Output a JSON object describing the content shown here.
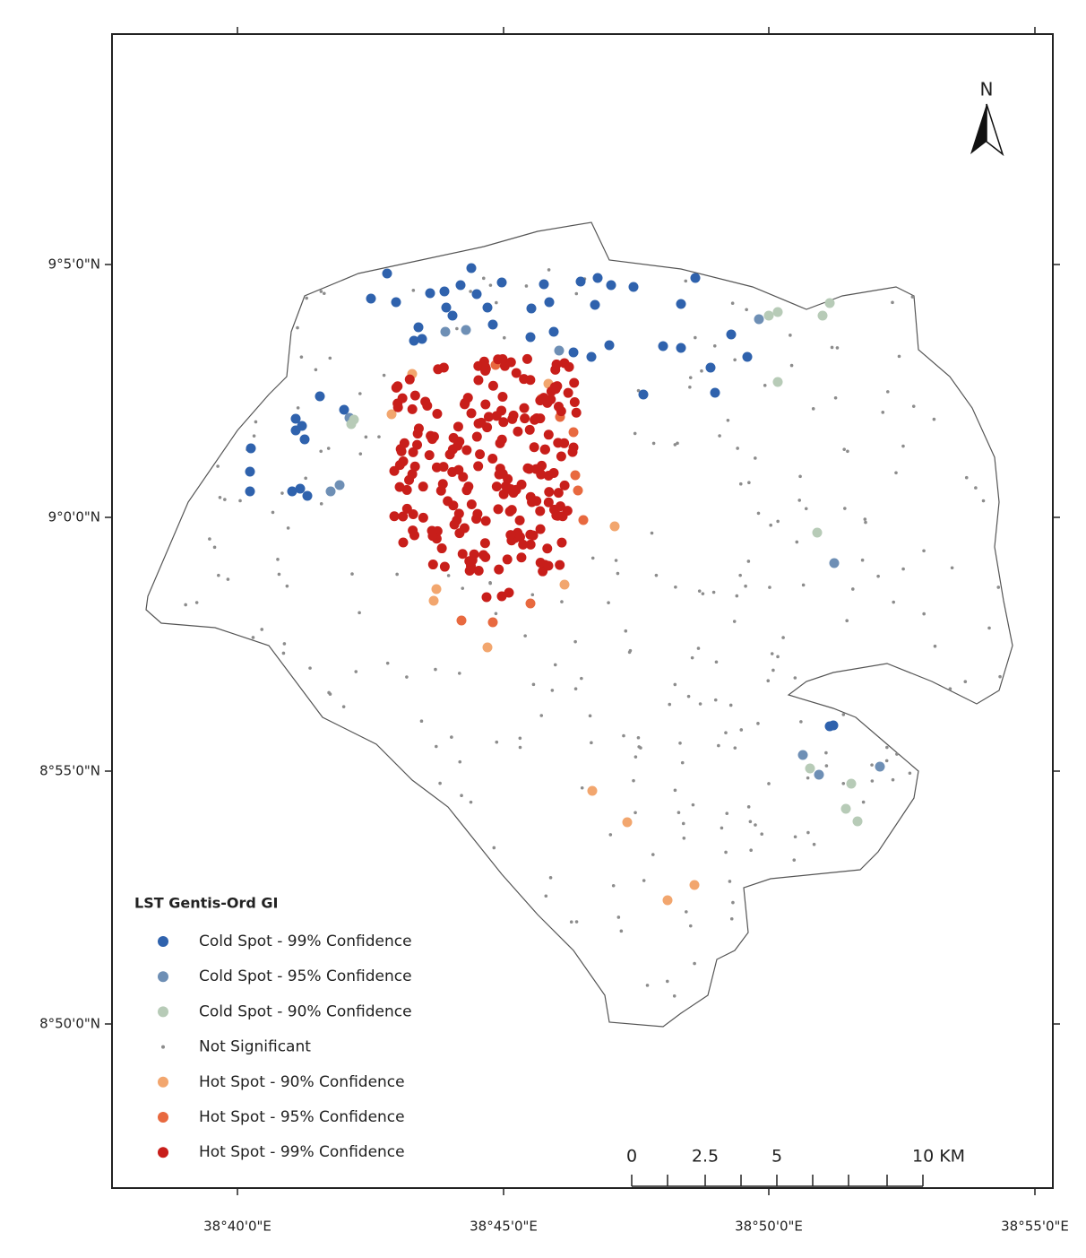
{
  "map": {
    "north_label": "N",
    "x_ticks": [
      "38°40'0\"E",
      "38°45'0\"E",
      "38°50'0\"E",
      "38°55'0\"E"
    ],
    "y_ticks": [
      "9°5'0\"N",
      "9°0'0\"N",
      "8°55'0\"N",
      "8°50'0\"N"
    ],
    "legend": {
      "title": "LST Gentis-Ord GI",
      "items": [
        {
          "label": "Cold Spot - 99% Confidence",
          "color": "#2f62ad"
        },
        {
          "label": "Cold Spot - 95% Confidence",
          "color": "#6e8fb5"
        },
        {
          "label": "Cold Spot - 90% Confidence",
          "color": "#b7cbb7"
        },
        {
          "label": "Not Significant",
          "color": "#8c8c8c"
        },
        {
          "label": "Hot Spot - 90% Confidence",
          "color": "#f2a66e"
        },
        {
          "label": "Hot Spot - 95% Confidence",
          "color": "#e8693f"
        },
        {
          "label": "Hot Spot - 99% Confidence",
          "color": "#c81e1a"
        }
      ]
    },
    "scale_bar": [
      "0",
      "2.5",
      "5",
      "10 KM"
    ]
  }
}
